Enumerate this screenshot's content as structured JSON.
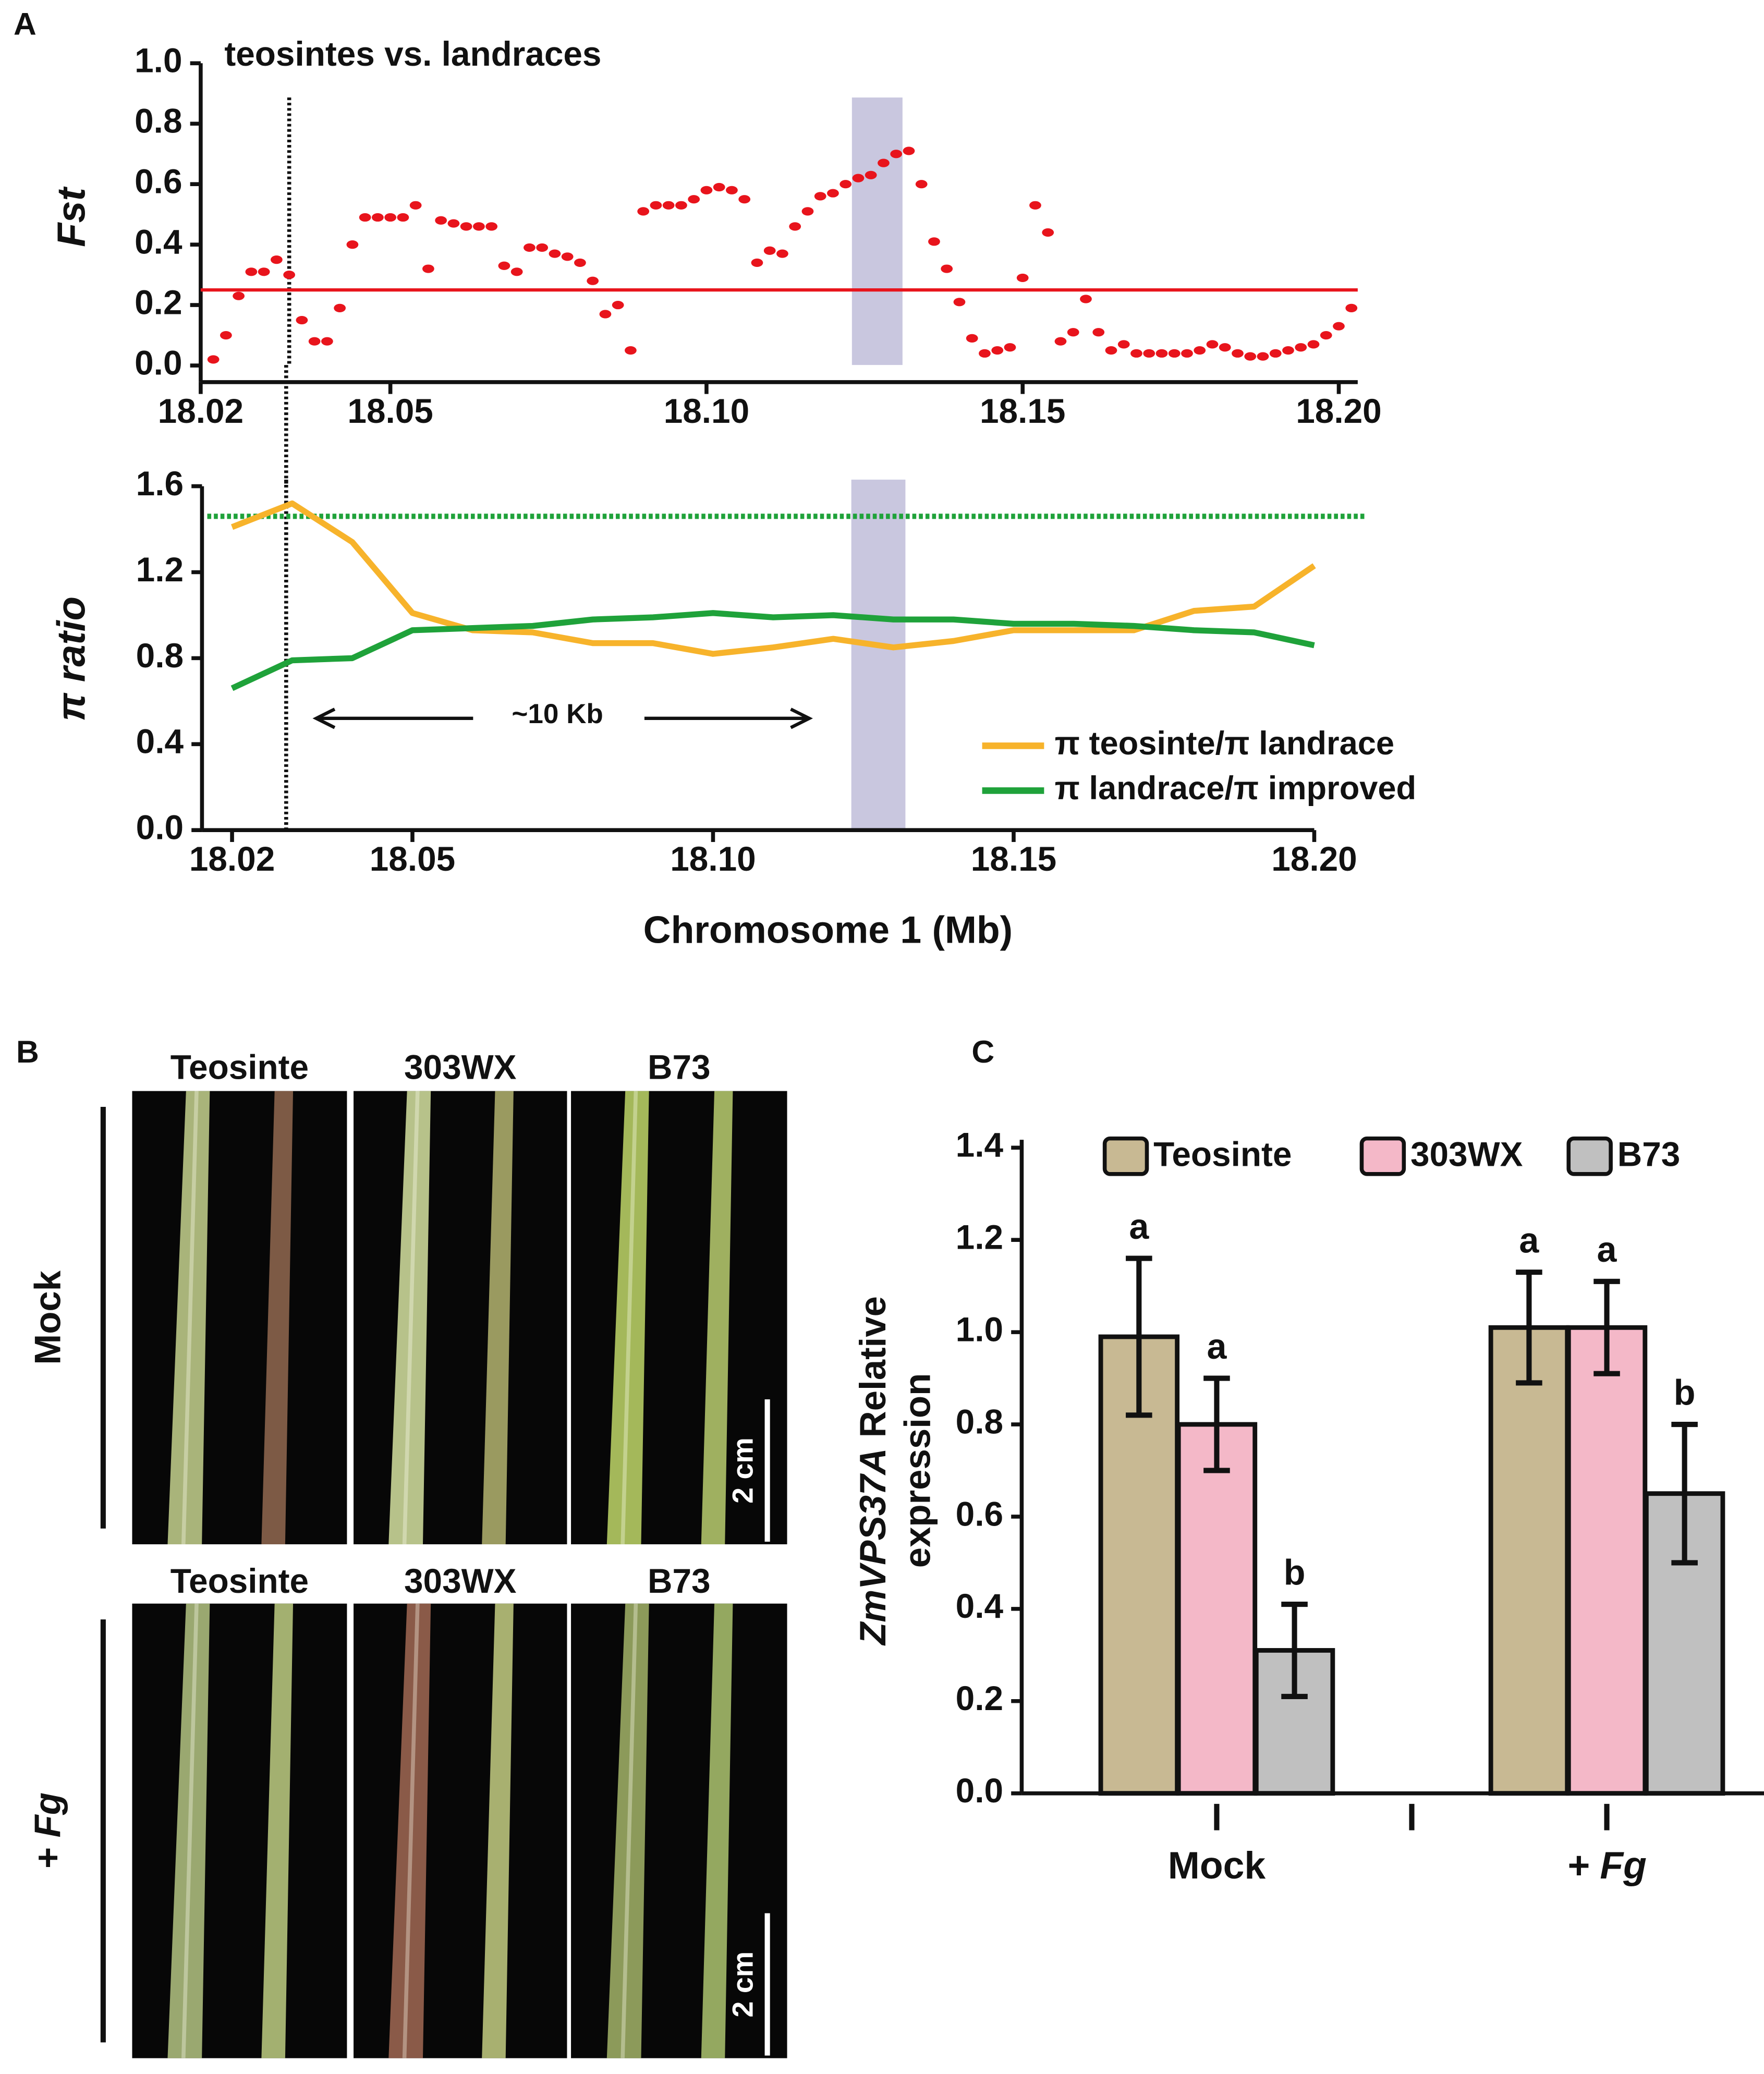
{
  "chart_data": [
    {
      "type": "scatter",
      "panel_label": "A",
      "title": "teosintes vs. landraces",
      "ylabel": "Fst",
      "x": [
        18.022,
        18.024,
        18.026,
        18.028,
        18.03,
        18.032,
        18.034,
        18.036,
        18.038,
        18.04,
        18.042,
        18.044,
        18.046,
        18.048,
        18.05,
        18.052,
        18.054,
        18.056,
        18.058,
        18.06,
        18.062,
        18.064,
        18.066,
        18.068,
        18.07,
        18.072,
        18.074,
        18.076,
        18.078,
        18.08,
        18.082,
        18.084,
        18.086,
        18.088,
        18.09,
        18.092,
        18.094,
        18.096,
        18.098,
        18.1,
        18.102,
        18.104,
        18.106,
        18.108,
        18.11,
        18.112,
        18.114,
        18.116,
        18.118,
        18.12,
        18.122,
        18.124,
        18.126,
        18.128,
        18.13,
        18.132,
        18.134,
        18.136,
        18.138,
        18.14,
        18.142,
        18.144,
        18.146,
        18.148,
        18.15,
        18.152,
        18.154,
        18.156,
        18.158,
        18.16,
        18.162,
        18.164,
        18.166,
        18.168,
        18.17,
        18.172,
        18.174,
        18.176,
        18.178,
        18.18,
        18.182,
        18.184,
        18.186,
        18.188,
        18.19,
        18.192,
        18.194,
        18.196,
        18.198,
        18.2,
        18.202
      ],
      "values": [
        0.02,
        0.1,
        0.23,
        0.31,
        0.31,
        0.35,
        0.3,
        0.15,
        0.08,
        0.08,
        0.19,
        0.4,
        0.49,
        0.49,
        0.49,
        0.49,
        0.53,
        0.32,
        0.48,
        0.47,
        0.46,
        0.46,
        0.46,
        0.33,
        0.31,
        0.39,
        0.39,
        0.37,
        0.36,
        0.34,
        0.28,
        0.17,
        0.2,
        0.05,
        0.51,
        0.53,
        0.53,
        0.53,
        0.55,
        0.58,
        0.59,
        0.58,
        0.55,
        0.34,
        0.38,
        0.37,
        0.46,
        0.51,
        0.56,
        0.57,
        0.6,
        0.62,
        0.63,
        0.67,
        0.7,
        0.71,
        0.6,
        0.41,
        0.32,
        0.21,
        0.09,
        0.04,
        0.05,
        0.06,
        0.29,
        0.53,
        0.44,
        0.08,
        0.11,
        0.22,
        0.11,
        0.05,
        0.07,
        0.04,
        0.04,
        0.04,
        0.04,
        0.04,
        0.05,
        0.07,
        0.06,
        0.04,
        0.03,
        0.03,
        0.04,
        0.05,
        0.06,
        0.07,
        0.1,
        0.13,
        0.19
      ],
      "color": "#e8141c",
      "xlim": [
        18.02,
        18.203
      ],
      "ylim": [
        -0.055,
        1.0
      ],
      "xticks": [
        18.02,
        18.05,
        {
          "value": 18.1,
          "label": "18.10"
        },
        18.15,
        {
          "value": 18.2,
          "label": "18.20"
        }
      ],
      "yticks": [
        {
          "value": 0,
          "label": "0.0"
        },
        0.2,
        0.4,
        0.6,
        0.8,
        {
          "value": 1,
          "label": "1.0"
        }
      ],
      "hline": {
        "value": 0.25,
        "color": "#e8141c"
      },
      "shaded": {
        "x": [
          18.123,
          18.131
        ],
        "color": "#c9c7df"
      },
      "vline": {
        "value": 18.034,
        "color": "#111111"
      }
    },
    {
      "type": "line",
      "xlabel": "Chromosome 1 (Mb)",
      "ylabel": "π ratio",
      "x": [
        18.02,
        18.03,
        18.04,
        18.05,
        18.06,
        18.07,
        18.08,
        18.09,
        18.1,
        18.11,
        18.12,
        18.13,
        18.14,
        18.15,
        18.16,
        18.17,
        18.18,
        18.19,
        18.2
      ],
      "series": [
        {
          "name": "π teosinte/π landrace",
          "color": "#f7b32b",
          "values": [
            1.41,
            1.52,
            1.34,
            1.01,
            0.93,
            0.92,
            0.87,
            0.87,
            0.82,
            0.85,
            0.89,
            0.85,
            0.88,
            0.93,
            0.93,
            0.93,
            1.02,
            1.04,
            1.23
          ]
        },
        {
          "name": "π landrace/π improved",
          "color": "#1fa23a",
          "values": [
            0.66,
            0.79,
            0.8,
            0.93,
            0.94,
            0.95,
            0.98,
            0.99,
            1.01,
            0.99,
            1.0,
            0.98,
            0.98,
            0.96,
            0.96,
            0.95,
            0.93,
            0.92,
            0.86
          ]
        }
      ],
      "xlim": [
        18.015,
        18.2
      ],
      "ylim": [
        0,
        1.6
      ],
      "xticks": [
        18.02,
        18.05,
        {
          "value": 18.1,
          "label": "18.10"
        },
        18.15,
        {
          "value": 18.2,
          "label": "18.20"
        }
      ],
      "yticks": [
        {
          "value": 0,
          "label": "0.0"
        },
        0.4,
        0.8,
        1.2,
        1.6
      ],
      "hline": {
        "value": 1.46,
        "color": "#1fa23a"
      },
      "shaded": {
        "x": [
          18.123,
          18.132
        ],
        "color": "#c9c7df"
      },
      "vline": {
        "value": 18.029,
        "color": "#111111"
      },
      "annotation": {
        "text": "~10 Kb",
        "x": [
          18.034,
          18.116
        ],
        "y": 0.52
      },
      "legend": "lower right"
    },
    {
      "type": "bar",
      "panel_label": "C",
      "ylabel_gene": "ZmVPS37A",
      "ylabel": [
        "Relative",
        "expression"
      ],
      "categories": [
        "Mock",
        "+ Fg"
      ],
      "series": [
        {
          "name": "Teosinte",
          "color": "#c8b993",
          "values": [
            0.99,
            1.01
          ],
          "errors": [
            0.17,
            0.12
          ],
          "significance": [
            "a",
            "a"
          ]
        },
        {
          "name": "303WX",
          "color": "#f4b8c8",
          "values": [
            0.8,
            1.01
          ],
          "errors": [
            0.1,
            0.1
          ],
          "significance": [
            "a",
            "a"
          ]
        },
        {
          "name": "B73",
          "color": "#c0c0c0",
          "values": [
            0.31,
            0.65
          ],
          "errors": [
            0.1,
            0.15
          ],
          "significance": [
            "b",
            "b"
          ]
        }
      ],
      "ylim": [
        0,
        1.4
      ],
      "yticks": [
        {
          "value": 0,
          "label": "0.0"
        },
        0.2,
        0.4,
        0.6,
        0.8,
        {
          "value": 1,
          "label": "1.0"
        },
        1.2,
        1.4
      ],
      "legend": "top"
    }
  ],
  "photo_panel": {
    "panel_label": "B",
    "columns": [
      "Teosinte",
      "303WX",
      "B73"
    ],
    "rows": [
      "Mock",
      "+ Fg"
    ],
    "scale_bar": "2 cm"
  }
}
